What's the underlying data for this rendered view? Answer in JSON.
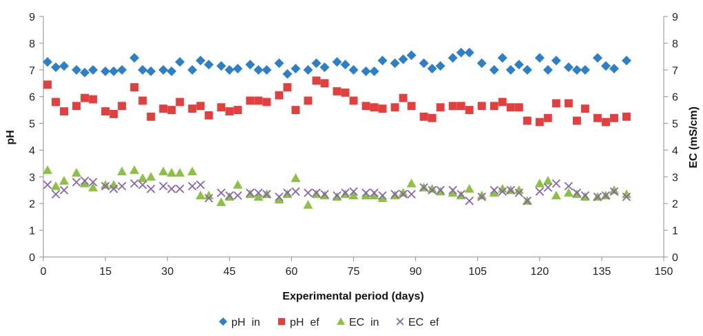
{
  "chart_data": {
    "type": "scatter",
    "xlabel": "Experimental period (days)",
    "ylabel": "pH",
    "y2label": "EC (mS/cm)",
    "xlim": [
      0,
      150
    ],
    "ylim": [
      0,
      9
    ],
    "y2lim": [
      0,
      9
    ],
    "xticks": [
      "0",
      "15",
      "30",
      "45",
      "60",
      "75",
      "90",
      "105",
      "120",
      "135",
      "150"
    ],
    "yticks": [
      "0",
      "1",
      "2",
      "3",
      "4",
      "5",
      "6",
      "7",
      "8",
      "9"
    ],
    "y2ticks": [
      "0",
      "1",
      "2",
      "3",
      "4",
      "5",
      "6",
      "7",
      "8",
      "9"
    ],
    "legend_position": "bottom",
    "grid": false,
    "series": [
      {
        "name": "pH  in",
        "color": "#2e7fc9",
        "marker": "diamond",
        "axis": "left",
        "x": [
          1,
          3,
          5,
          8,
          10,
          12,
          15,
          17,
          19,
          22,
          24,
          26,
          29,
          31,
          33,
          36,
          38,
          40,
          43,
          45,
          47,
          50,
          52,
          54,
          57,
          59,
          61,
          64,
          66,
          68,
          71,
          73,
          75,
          78,
          80,
          82,
          85,
          87,
          89,
          92,
          94,
          96,
          99,
          101,
          103,
          106,
          109,
          111,
          113,
          115,
          117,
          120,
          122,
          124,
          127,
          129,
          131,
          134,
          136,
          138,
          141
        ],
        "y": [
          7.3,
          7.1,
          7.15,
          7.0,
          6.9,
          7.0,
          6.95,
          6.95,
          7.0,
          7.45,
          7.0,
          6.95,
          7.0,
          6.95,
          7.3,
          7.0,
          7.35,
          7.2,
          7.15,
          7.0,
          7.05,
          7.2,
          7.0,
          7.0,
          7.25,
          6.85,
          7.05,
          7.0,
          7.25,
          7.1,
          7.3,
          7.2,
          7.0,
          6.95,
          6.95,
          7.35,
          7.25,
          7.4,
          7.55,
          7.25,
          7.05,
          7.15,
          7.45,
          7.65,
          7.65,
          7.25,
          7.0,
          7.45,
          7.0,
          7.2,
          7.0,
          7.45,
          7.0,
          7.35,
          7.1,
          7.0,
          7.0,
          7.45,
          7.15,
          7.05,
          7.35
        ]
      },
      {
        "name": "pH  ef",
        "color": "#e2403f",
        "marker": "square",
        "axis": "left",
        "x": [
          1,
          3,
          5,
          8,
          10,
          12,
          15,
          17,
          19,
          22,
          24,
          26,
          29,
          31,
          33,
          36,
          38,
          40,
          43,
          45,
          47,
          50,
          52,
          54,
          57,
          59,
          61,
          64,
          66,
          68,
          71,
          73,
          75,
          78,
          80,
          82,
          85,
          87,
          89,
          92,
          94,
          96,
          99,
          101,
          103,
          106,
          109,
          111,
          113,
          115,
          117,
          120,
          122,
          124,
          127,
          129,
          131,
          134,
          136,
          138,
          141
        ],
        "y": [
          6.45,
          5.8,
          5.45,
          5.65,
          5.95,
          5.9,
          5.45,
          5.35,
          5.65,
          6.35,
          5.85,
          5.25,
          5.55,
          5.5,
          5.8,
          5.55,
          5.65,
          5.3,
          5.6,
          5.45,
          5.5,
          5.85,
          5.85,
          5.8,
          6.05,
          6.35,
          5.5,
          5.85,
          6.6,
          6.5,
          6.2,
          6.15,
          5.85,
          5.65,
          5.6,
          5.55,
          5.6,
          5.95,
          5.65,
          5.25,
          5.2,
          5.6,
          5.65,
          5.65,
          5.5,
          5.65,
          5.65,
          5.8,
          5.6,
          5.6,
          5.1,
          5.05,
          5.2,
          5.75,
          5.75,
          5.1,
          5.55,
          5.2,
          5.05,
          5.2,
          5.25
        ]
      },
      {
        "name": "EC  in",
        "color": "#8dc143",
        "marker": "triangle",
        "axis": "right",
        "x": [
          1,
          3,
          5,
          8,
          10,
          12,
          15,
          17,
          19,
          22,
          24,
          26,
          29,
          31,
          33,
          36,
          38,
          40,
          43,
          45,
          47,
          50,
          52,
          54,
          57,
          59,
          61,
          64,
          66,
          68,
          71,
          73,
          75,
          78,
          80,
          82,
          85,
          87,
          89,
          92,
          94,
          96,
          99,
          101,
          103,
          106,
          109,
          111,
          113,
          115,
          117,
          120,
          122,
          124,
          127,
          129,
          131,
          134,
          136,
          138,
          141
        ],
        "y": [
          3.25,
          2.65,
          2.85,
          3.15,
          2.75,
          2.6,
          2.7,
          2.7,
          3.2,
          3.25,
          2.95,
          3.0,
          3.2,
          3.15,
          3.15,
          3.2,
          2.3,
          2.3,
          2.05,
          2.25,
          2.7,
          2.35,
          2.25,
          2.35,
          2.15,
          2.35,
          2.95,
          1.95,
          2.35,
          2.3,
          2.25,
          2.35,
          2.3,
          2.3,
          2.3,
          2.2,
          2.3,
          2.4,
          2.75,
          2.6,
          2.55,
          2.45,
          2.4,
          2.3,
          2.55,
          2.3,
          2.4,
          2.55,
          2.5,
          2.5,
          2.1,
          2.75,
          2.85,
          2.3,
          2.4,
          2.35,
          2.25,
          2.25,
          2.3,
          2.5,
          2.35
        ]
      },
      {
        "name": "EC  ef",
        "color": "#8a63b4",
        "marker": "x",
        "axis": "right",
        "x": [
          1,
          3,
          5,
          8,
          10,
          12,
          15,
          17,
          19,
          22,
          24,
          26,
          29,
          31,
          33,
          36,
          38,
          40,
          43,
          45,
          47,
          50,
          52,
          54,
          57,
          59,
          61,
          64,
          66,
          68,
          71,
          73,
          75,
          78,
          80,
          82,
          85,
          87,
          89,
          92,
          94,
          96,
          99,
          101,
          103,
          106,
          109,
          111,
          113,
          115,
          117,
          120,
          122,
          124,
          127,
          129,
          131,
          134,
          136,
          138,
          141
        ],
        "y": [
          2.7,
          2.35,
          2.5,
          2.8,
          2.85,
          2.8,
          2.65,
          2.55,
          2.65,
          2.75,
          2.7,
          2.55,
          2.65,
          2.55,
          2.55,
          2.65,
          2.7,
          2.2,
          2.4,
          2.3,
          2.3,
          2.4,
          2.4,
          2.35,
          2.25,
          2.4,
          2.45,
          2.4,
          2.4,
          2.35,
          2.3,
          2.4,
          2.45,
          2.4,
          2.4,
          2.3,
          2.35,
          2.35,
          2.35,
          2.6,
          2.5,
          2.5,
          2.5,
          2.35,
          2.1,
          2.25,
          2.5,
          2.45,
          2.5,
          2.4,
          2.1,
          2.45,
          2.6,
          2.75,
          2.65,
          2.4,
          2.3,
          2.25,
          2.3,
          2.45,
          2.25
        ]
      }
    ]
  }
}
